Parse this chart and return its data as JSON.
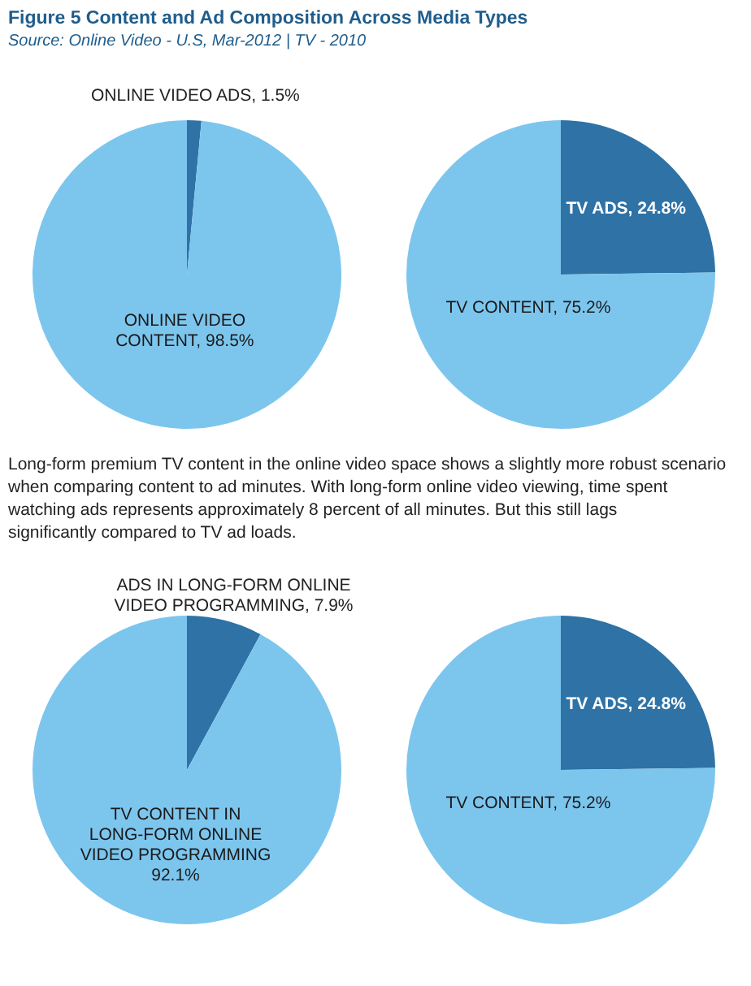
{
  "chart_data": [
    {
      "type": "pie",
      "title": "Figure 5 Content and Ad Composition Across Media Types",
      "subtitle": "Source: Online Video - U.S, Mar-2012 | TV - 2010",
      "categories": [
        "ONLINE VIDEO ADS",
        "ONLINE VIDEO CONTENT"
      ],
      "values": [
        1.5,
        98.5
      ],
      "value_labels": [
        ", 1.5%",
        ", 98.5%"
      ],
      "colors": [
        "#2e72a6",
        "#7cc6ee"
      ]
    },
    {
      "type": "pie",
      "categories": [
        "TV ADS",
        "TV CONTENT"
      ],
      "values": [
        24.8,
        75.2
      ],
      "value_labels": [
        ", 24.8%",
        ", 75.2%"
      ],
      "colors": [
        "#2e72a6",
        "#7cc6ee"
      ]
    },
    {
      "type": "pie",
      "annotations": [
        "Long-form premium TV content in the online video space shows a slightly more robust scenario when comparing content to ad minutes. With long-form online video viewing, time spent watching ads represents approximately 8 percent of all minutes. But this still lags significantly compared to TV ad loads."
      ],
      "categories": [
        "ADS IN LONG-FORM ONLINE VIDEO PROGRAMMING",
        "TV CONTENT IN LONG-FORM ONLINE VIDEO PROGRAMMING"
      ],
      "values": [
        7.9,
        92.1
      ],
      "value_labels": [
        ", 7.9%",
        " 92.1%"
      ],
      "colors": [
        "#2e72a6",
        "#7cc6ee"
      ]
    },
    {
      "type": "pie",
      "categories": [
        "TV ADS",
        "TV CONTENT"
      ],
      "values": [
        24.8,
        75.2
      ],
      "value_labels": [
        ", 24.8%",
        ", 75.2%"
      ],
      "colors": [
        "#2e72a6",
        "#7cc6ee"
      ]
    }
  ]
}
